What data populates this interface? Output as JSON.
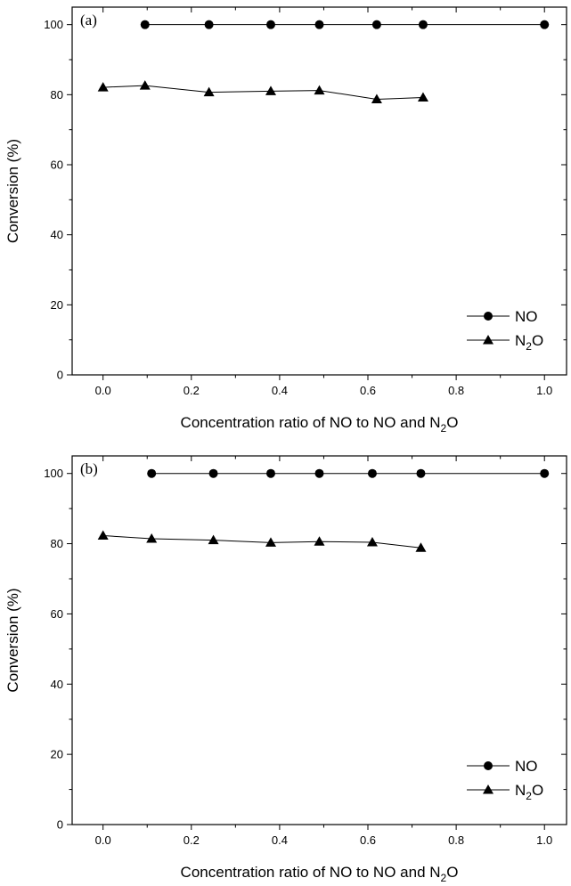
{
  "chart_data": [
    {
      "type": "line",
      "panel_label": "(a)",
      "xlabel": {
        "prefix": "Concentration ratio of NO to NO and N",
        "sub": "2",
        "suffix": "O"
      },
      "ylabel": "Conversion (%)",
      "xlim": [
        -0.07,
        1.05
      ],
      "ylim": [
        0,
        105
      ],
      "xticks": [
        0.0,
        0.2,
        0.4,
        0.6,
        0.8,
        1.0
      ],
      "xtick_labels": [
        "0.0",
        "0.2",
        "0.4",
        "0.6",
        "0.8",
        "1.0"
      ],
      "yticks": [
        0,
        20,
        40,
        60,
        80,
        100
      ],
      "ytick_labels": [
        "0",
        "20",
        "40",
        "60",
        "80",
        "100"
      ],
      "grid": false,
      "legend_position": "bottom-right",
      "series": [
        {
          "name": "NO",
          "name_sub": "",
          "name_suffix": "",
          "marker": "circle",
          "x": [
            0.095,
            0.24,
            0.38,
            0.49,
            0.62,
            0.725,
            1.0
          ],
          "y": [
            100,
            100,
            100,
            100,
            100,
            100,
            100
          ]
        },
        {
          "name": "N",
          "name_sub": "2",
          "name_suffix": "O",
          "marker": "triangle",
          "x": [
            0.0,
            0.095,
            0.24,
            0.38,
            0.49,
            0.62,
            0.725
          ],
          "y": [
            82.1,
            82.6,
            80.7,
            81.0,
            81.2,
            78.7,
            79.2
          ]
        }
      ]
    },
    {
      "type": "line",
      "panel_label": "(b)",
      "xlabel": {
        "prefix": "Concentration ratio of NO to NO and N",
        "sub": "2",
        "suffix": "O"
      },
      "ylabel": "Conversion (%)",
      "xlim": [
        -0.07,
        1.05
      ],
      "ylim": [
        0,
        105
      ],
      "xticks": [
        0.0,
        0.2,
        0.4,
        0.6,
        0.8,
        1.0
      ],
      "xtick_labels": [
        "0.0",
        "0.2",
        "0.4",
        "0.6",
        "0.8",
        "1.0"
      ],
      "yticks": [
        0,
        20,
        40,
        60,
        80,
        100
      ],
      "ytick_labels": [
        "0",
        "20",
        "40",
        "60",
        "80",
        "100"
      ],
      "grid": false,
      "legend_position": "bottom-right",
      "series": [
        {
          "name": "NO",
          "name_sub": "",
          "name_suffix": "",
          "marker": "circle",
          "x": [
            0.11,
            0.25,
            0.38,
            0.49,
            0.61,
            0.72,
            1.0
          ],
          "y": [
            100,
            100,
            100,
            100,
            100,
            100,
            100
          ]
        },
        {
          "name": "N",
          "name_sub": "2",
          "name_suffix": "O",
          "marker": "triangle",
          "x": [
            0.0,
            0.11,
            0.25,
            0.38,
            0.49,
            0.61,
            0.72
          ],
          "y": [
            82.3,
            81.4,
            81.0,
            80.3,
            80.6,
            80.4,
            78.8
          ]
        }
      ]
    }
  ]
}
